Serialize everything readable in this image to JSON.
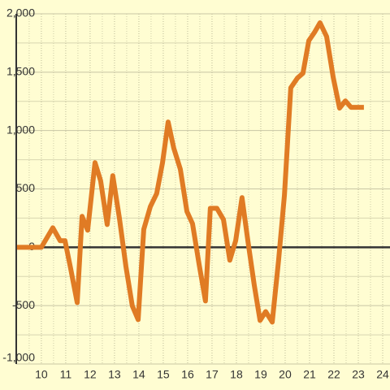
{
  "chart_data": {
    "type": "line",
    "x": [
      9.0,
      10.0,
      10.47,
      10.77,
      10.97,
      11.2,
      11.47,
      11.67,
      11.9,
      12.2,
      12.43,
      12.7,
      12.93,
      13.2,
      13.47,
      13.73,
      13.97,
      14.2,
      14.47,
      14.73,
      14.97,
      15.2,
      15.43,
      15.7,
      15.97,
      16.2,
      16.47,
      16.73,
      16.93,
      17.2,
      17.47,
      17.73,
      17.97,
      18.23,
      18.47,
      18.73,
      18.97,
      19.2,
      19.47,
      19.73,
      19.97,
      20.23,
      20.5,
      20.73,
      20.97,
      21.2,
      21.43,
      21.7,
      21.97,
      22.23,
      22.47,
      22.7,
      22.97,
      23.23
    ],
    "series": [
      {
        "color": "#e07b24",
        "values": [
          0,
          0,
          167,
          56,
          56,
          -181,
          -474,
          265,
          146,
          725,
          571,
          195,
          613,
          251,
          -167,
          -502,
          -620,
          153,
          348,
          460,
          725,
          1073,
          850,
          669,
          307,
          202,
          -146,
          -460,
          334,
          334,
          237,
          -111,
          56,
          425,
          56,
          -321,
          -627,
          -551,
          -641,
          -111,
          446,
          1366,
          1449,
          1491,
          1770,
          1840,
          1923,
          1805,
          1456,
          1192,
          1254,
          1199,
          1199,
          1199
        ]
      }
    ],
    "xlim": [
      8.97,
      24.3
    ],
    "ylim": [
      -1000,
      2000
    ],
    "xticks": [
      10,
      11,
      12,
      13,
      14,
      15,
      16,
      17,
      18,
      19,
      20,
      21,
      22,
      23,
      24
    ],
    "minor_xticks": [
      9.5,
      10.5,
      11.5,
      12.5,
      13.5,
      14.5,
      15.5,
      16.5,
      17.5,
      18.5,
      19.5,
      20.5,
      21.5,
      22.5,
      23.5
    ],
    "yticks": [
      {
        "value": -1000,
        "label": "-1,000"
      },
      -500,
      0,
      500,
      {
        "value": 1000,
        "label": "1,000"
      },
      {
        "value": 1500,
        "label": "1,500"
      },
      {
        "value": 2000,
        "label": "2,000"
      }
    ],
    "minor_yticks": [
      -750,
      -250,
      250,
      750,
      1250,
      1750
    ],
    "grid": true
  }
}
